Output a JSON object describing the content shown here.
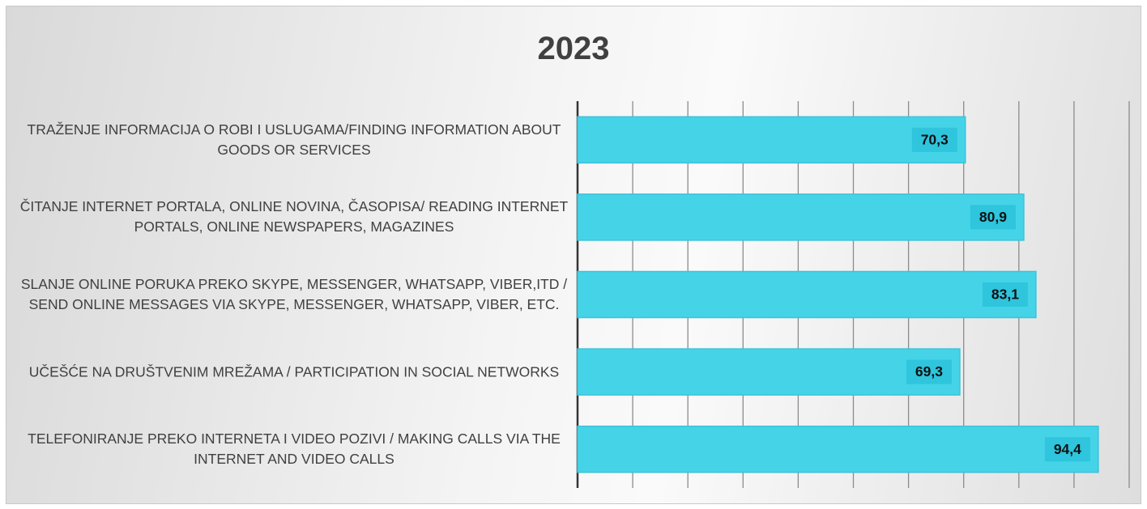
{
  "chart_data": {
    "type": "barh",
    "title": "2023",
    "categories": [
      "TRAŽENJE INFORMACIJA O ROBI I USLUGAMA/FINDING INFORMATION ABOUT GOODS OR SERVICES",
      "ČITANJE INTERNET PORTALA, ONLINE NOVINA, ČASOPISA/ READING INTERNET PORTALS, ONLINE NEWSPAPERS, MAGAZINES",
      "SLANJE ONLINE PORUKA PREKO SKYPE, MESSENGER, WHATSAPP, VIBER,ITD / SEND ONLINE MESSAGES VIA SKYPE, MESSENGER, WHATSAPP, VIBER, ETC.",
      "UČEŠĆE NA DRUŠTVENIM MREŽAMA / PARTICIPATION IN SOCIAL NETWORKS",
      "TELEFONIRANJE PREKO INTERNETA I VIDEO POZIVI / MAKING CALLS VIA THE INTERNET AND VIDEO CALLS"
    ],
    "values": [
      70.3,
      80.9,
      83.1,
      69.3,
      94.4
    ],
    "value_labels": [
      "70,3",
      "80,9",
      "83,1",
      "69,3",
      "94,4"
    ],
    "color": "#45d3e8",
    "xlim": [
      0,
      100
    ],
    "xticks": [
      0,
      10,
      20,
      30,
      40,
      50,
      60,
      70,
      80,
      90,
      100
    ],
    "grid": true
  }
}
